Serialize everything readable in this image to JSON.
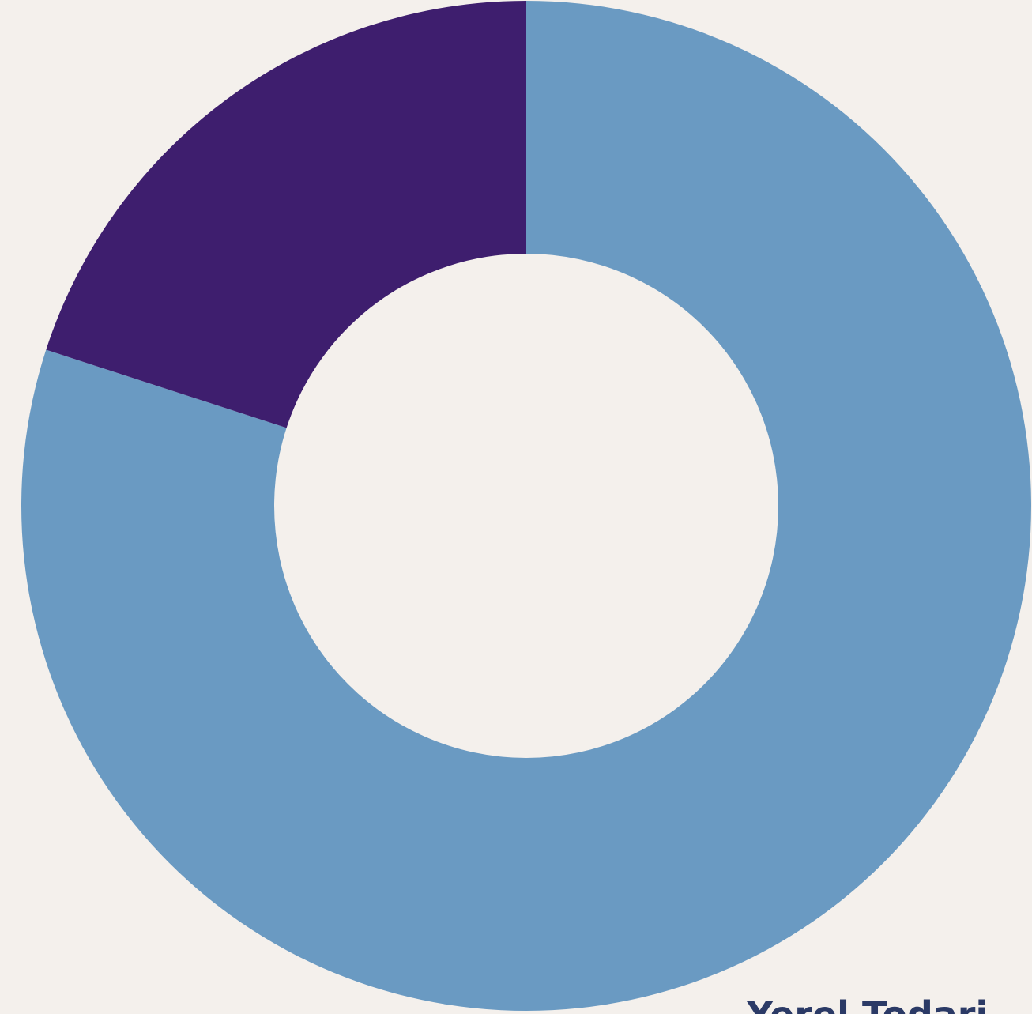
{
  "chart_data": {
    "type": "donut",
    "categories": [
      "Yerel Todari",
      null
    ],
    "values": [
      80,
      20
    ],
    "colors": [
      "#6a9ac2",
      "#3e1e6e"
    ]
  }
}
